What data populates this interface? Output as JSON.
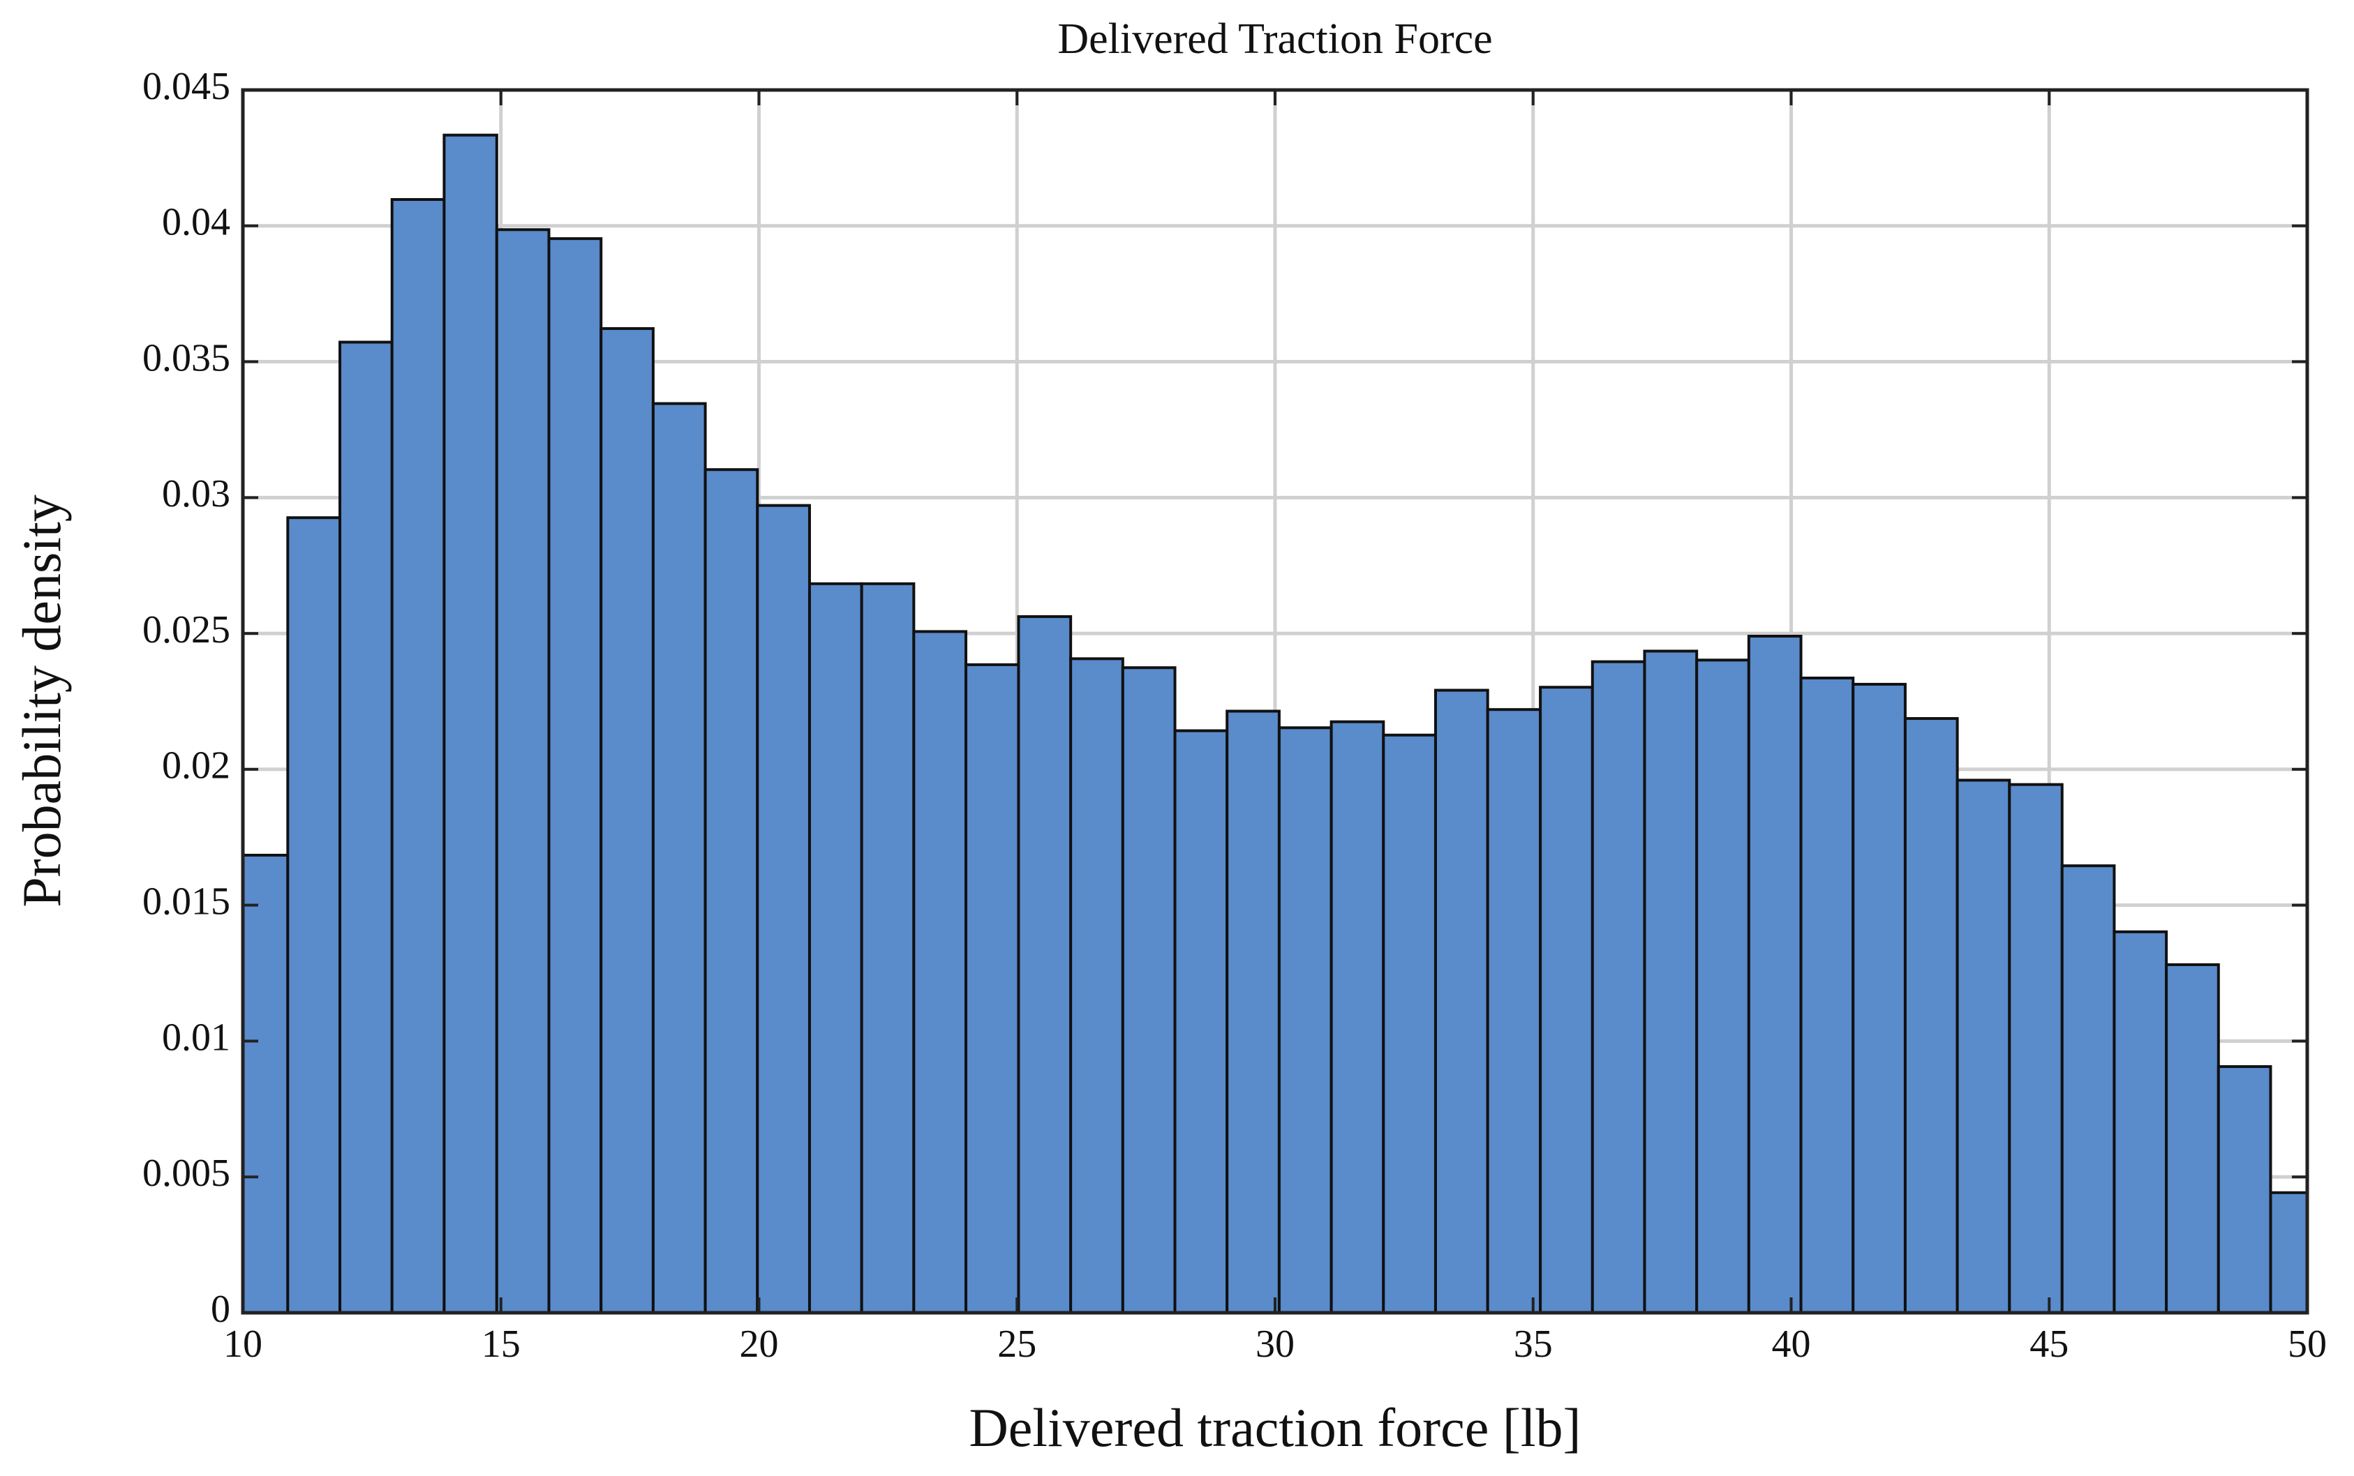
{
  "chart_data": {
    "type": "histogram",
    "title": "Delivered Traction Force",
    "x_label": "Delivered traction force [lb]",
    "y_label": "Probability density",
    "bins": [
      9.86,
      10.87,
      11.88,
      12.89,
      13.9,
      14.92,
      15.93,
      16.94,
      17.95,
      18.96,
      19.97,
      20.98,
      21.99,
      23.0,
      24.01,
      25.03,
      26.04,
      27.05,
      28.06,
      29.07,
      30.08,
      31.09,
      32.1,
      33.11,
      34.12,
      35.14,
      36.15,
      37.16,
      38.17,
      39.18,
      40.19,
      41.2,
      42.21,
      43.22,
      44.23,
      45.25,
      46.26,
      47.27,
      48.28,
      49.29,
      50.3
    ],
    "values": [
      0.01684,
      0.02926,
      0.03572,
      0.04097,
      0.04334,
      0.03986,
      0.03953,
      0.03622,
      0.03346,
      0.03103,
      0.02971,
      0.02683,
      0.02683,
      0.02507,
      0.02385,
      0.02562,
      0.02407,
      0.02374,
      0.02142,
      0.02214,
      0.02153,
      0.02175,
      0.02126,
      0.02291,
      0.0222,
      0.02302,
      0.02396,
      0.02435,
      0.02402,
      0.0249,
      0.02336,
      0.02313,
      0.02187,
      0.0196,
      0.01944,
      0.01645,
      0.01402,
      0.01281,
      0.00906,
      0.00442
    ],
    "color": "#5a8bcb",
    "xlim": [
      10,
      50
    ],
    "xticks": [
      10,
      15,
      20,
      25,
      30,
      35,
      40,
      45,
      50
    ],
    "ylim": [
      0,
      0.045
    ],
    "yticks": [
      0,
      0.005,
      0.01,
      0.015,
      0.02,
      0.025,
      0.03,
      0.035,
      0.04,
      0.045
    ],
    "grid": true
  }
}
